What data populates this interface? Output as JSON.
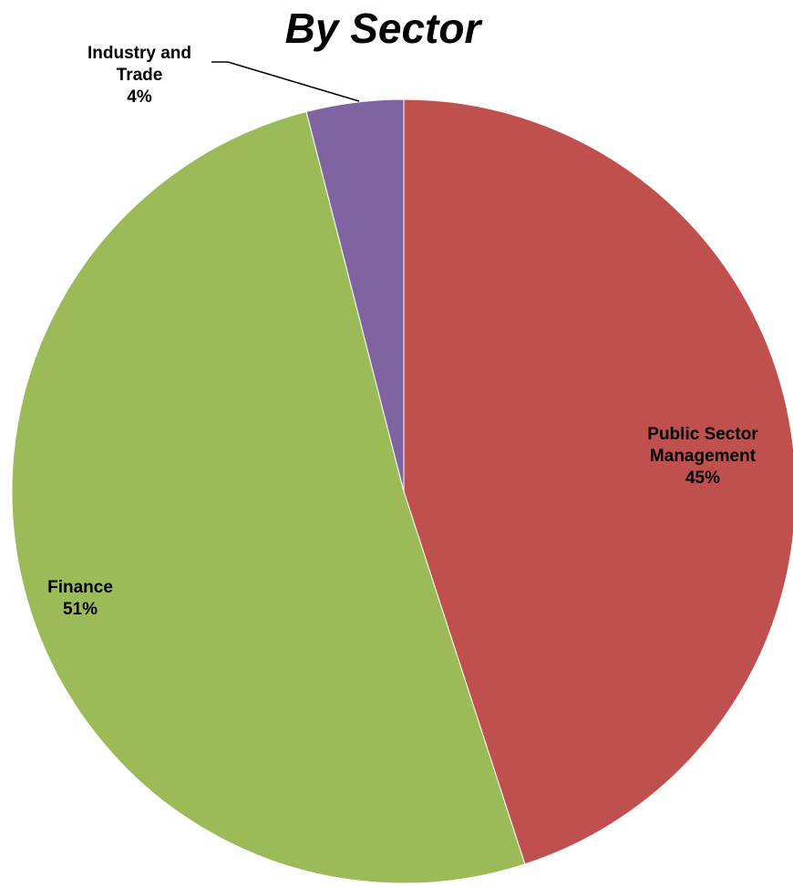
{
  "chart_data": {
    "type": "pie",
    "title": "By Sector",
    "slices": [
      {
        "label_lines": [
          "Public Sector",
          "Management"
        ],
        "value": 45,
        "percent_label": "45%",
        "color": "#c0504d"
      },
      {
        "label_lines": [
          "Finance"
        ],
        "value": 51,
        "percent_label": "51%",
        "color": "#9bbb59"
      },
      {
        "label_lines": [
          "Industry and",
          "Trade"
        ],
        "value": 4,
        "percent_label": "4%",
        "color": "#8064a2"
      }
    ],
    "start": "12 o'clock",
    "direction": "clockwise",
    "legend": "none"
  }
}
